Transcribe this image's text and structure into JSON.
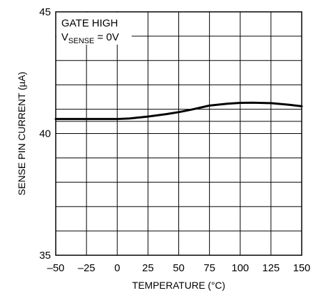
{
  "chart_data": {
    "type": "line",
    "title": "",
    "xlabel": "TEMPERATURE (°C)",
    "ylabel": "SENSE PIN CURRENT (µA)",
    "xlim": [
      -50,
      150
    ],
    "ylim": [
      35,
      45
    ],
    "x_ticks": [
      -50,
      -25,
      0,
      25,
      50,
      75,
      100,
      125,
      150
    ],
    "x_tick_labels": [
      "–50",
      "–25",
      "0",
      "25",
      "50",
      "75",
      "100",
      "125",
      "150"
    ],
    "y_tick_labels": [
      {
        "value": 45,
        "label": "45"
      },
      {
        "value": 40,
        "label": "40"
      },
      {
        "value": 35,
        "label": "35"
      }
    ],
    "x_gridlines": [
      -50,
      -25,
      0,
      25,
      50,
      75,
      100,
      125,
      150
    ],
    "y_gridlines": [
      35,
      36,
      37,
      38,
      39,
      40,
      40.5,
      41,
      42,
      43,
      44,
      45
    ],
    "grid": true,
    "legend": "none",
    "annotations": {
      "line1": "GATE HIGH",
      "line2_main": "V",
      "line2_sub": "SENSE",
      "line2_tail": " = 0V"
    },
    "series": [
      {
        "x": [
          -50,
          -25,
          0,
          10,
          25,
          40,
          50,
          60,
          75,
          90,
          100,
          110,
          125,
          140,
          150
        ],
        "y": [
          40.6,
          40.6,
          40.6,
          40.62,
          40.7,
          40.8,
          40.88,
          40.98,
          41.15,
          41.23,
          41.26,
          41.27,
          41.25,
          41.18,
          41.12
        ]
      }
    ],
    "line_color": "#000000"
  }
}
